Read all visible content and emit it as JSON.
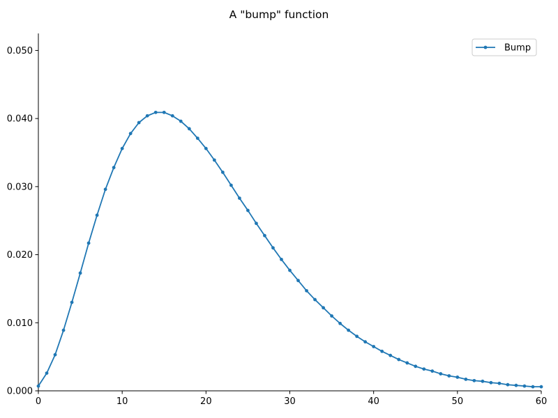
{
  "chart_data": {
    "type": "line",
    "title": "A \"bump\" function",
    "xlabel": "",
    "ylabel": "",
    "xlim": [
      0,
      60
    ],
    "ylim": [
      0,
      0.0525
    ],
    "xticks": [
      0,
      10,
      20,
      30,
      40,
      50,
      60
    ],
    "xtick_labels": [
      "0",
      "10",
      "20",
      "30",
      "40",
      "50",
      "60"
    ],
    "yticks": [
      0,
      0.01,
      0.02,
      0.03,
      0.04,
      0.05
    ],
    "ytick_labels": [
      "0.000",
      "0.010",
      "0.020",
      "0.030",
      "0.040",
      "0.050"
    ],
    "grid": false,
    "legend_position": "top-right",
    "series": [
      {
        "name": "Bump",
        "color": "#1f77b4",
        "marker": "circle",
        "x": [
          0,
          1,
          2,
          3,
          4,
          5,
          6,
          7,
          8,
          9,
          10,
          11,
          12,
          13,
          14,
          15,
          16,
          17,
          18,
          19,
          20,
          21,
          22,
          23,
          24,
          25,
          26,
          27,
          28,
          29,
          30,
          31,
          32,
          33,
          34,
          35,
          36,
          37,
          38,
          39,
          40,
          41,
          42,
          43,
          44,
          45,
          46,
          47,
          48,
          49,
          50,
          51,
          52,
          53,
          54,
          55,
          56,
          57,
          58,
          59,
          60
        ],
        "y": [
          0.0007,
          0.0026,
          0.0053,
          0.0089,
          0.013,
          0.0173,
          0.0217,
          0.0258,
          0.0296,
          0.0328,
          0.0356,
          0.0378,
          0.0394,
          0.0404,
          0.0409,
          0.0409,
          0.0404,
          0.0396,
          0.0385,
          0.0371,
          0.0356,
          0.0339,
          0.0321,
          0.0302,
          0.0283,
          0.0265,
          0.0246,
          0.0228,
          0.021,
          0.0193,
          0.0177,
          0.0162,
          0.0147,
          0.0134,
          0.0122,
          0.011,
          0.0099,
          0.0089,
          0.008,
          0.0072,
          0.0065,
          0.0058,
          0.0052,
          0.0046,
          0.0041,
          0.0036,
          0.0032,
          0.0029,
          0.0025,
          0.0022,
          0.002,
          0.0017,
          0.0015,
          0.0014,
          0.0012,
          0.0011,
          0.0009,
          0.0008,
          0.0007,
          0.0006,
          0.0006
        ]
      }
    ]
  }
}
